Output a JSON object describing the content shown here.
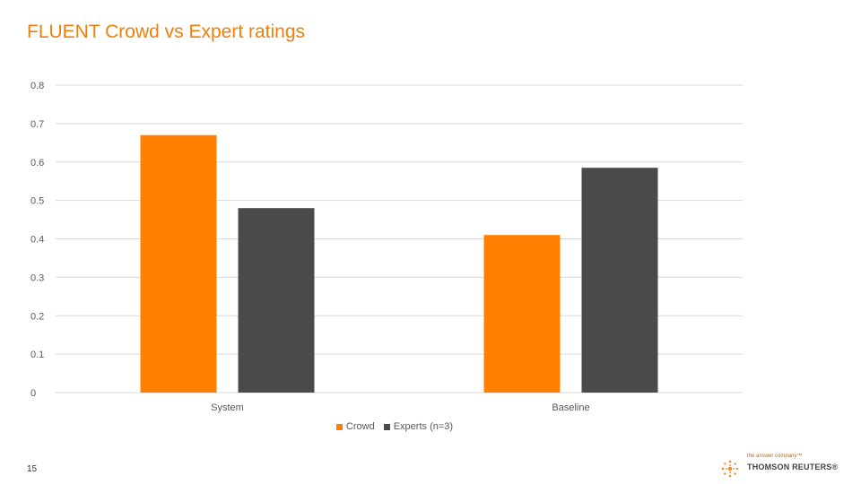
{
  "slide": {
    "title": "FLUENT Crowd vs Expert ratings",
    "page_number": "15"
  },
  "logo": {
    "tagline": "the answer company™",
    "name": "THOMSON REUTERS®"
  },
  "colors": {
    "accent": "#f07f09",
    "crowd": "#ff8000",
    "experts": "#4a4a4a",
    "grid": "#d9d9d9",
    "text": "#595959"
  },
  "chart_data": {
    "type": "bar",
    "title": "",
    "xlabel": "",
    "ylabel": "",
    "categories": [
      "System",
      "Baseline"
    ],
    "series": [
      {
        "name": "Crowd",
        "values": [
          0.67,
          0.41
        ]
      },
      {
        "name": "Experts (n=3)",
        "values": [
          0.48,
          0.585
        ]
      }
    ],
    "ylim": [
      0,
      0.8
    ],
    "yticks": [
      "0",
      "0.1",
      "0.2",
      "0.3",
      "0.4",
      "0.5",
      "0.6",
      "0.7",
      "0.8"
    ],
    "grid": true,
    "legend_position": "bottom"
  }
}
